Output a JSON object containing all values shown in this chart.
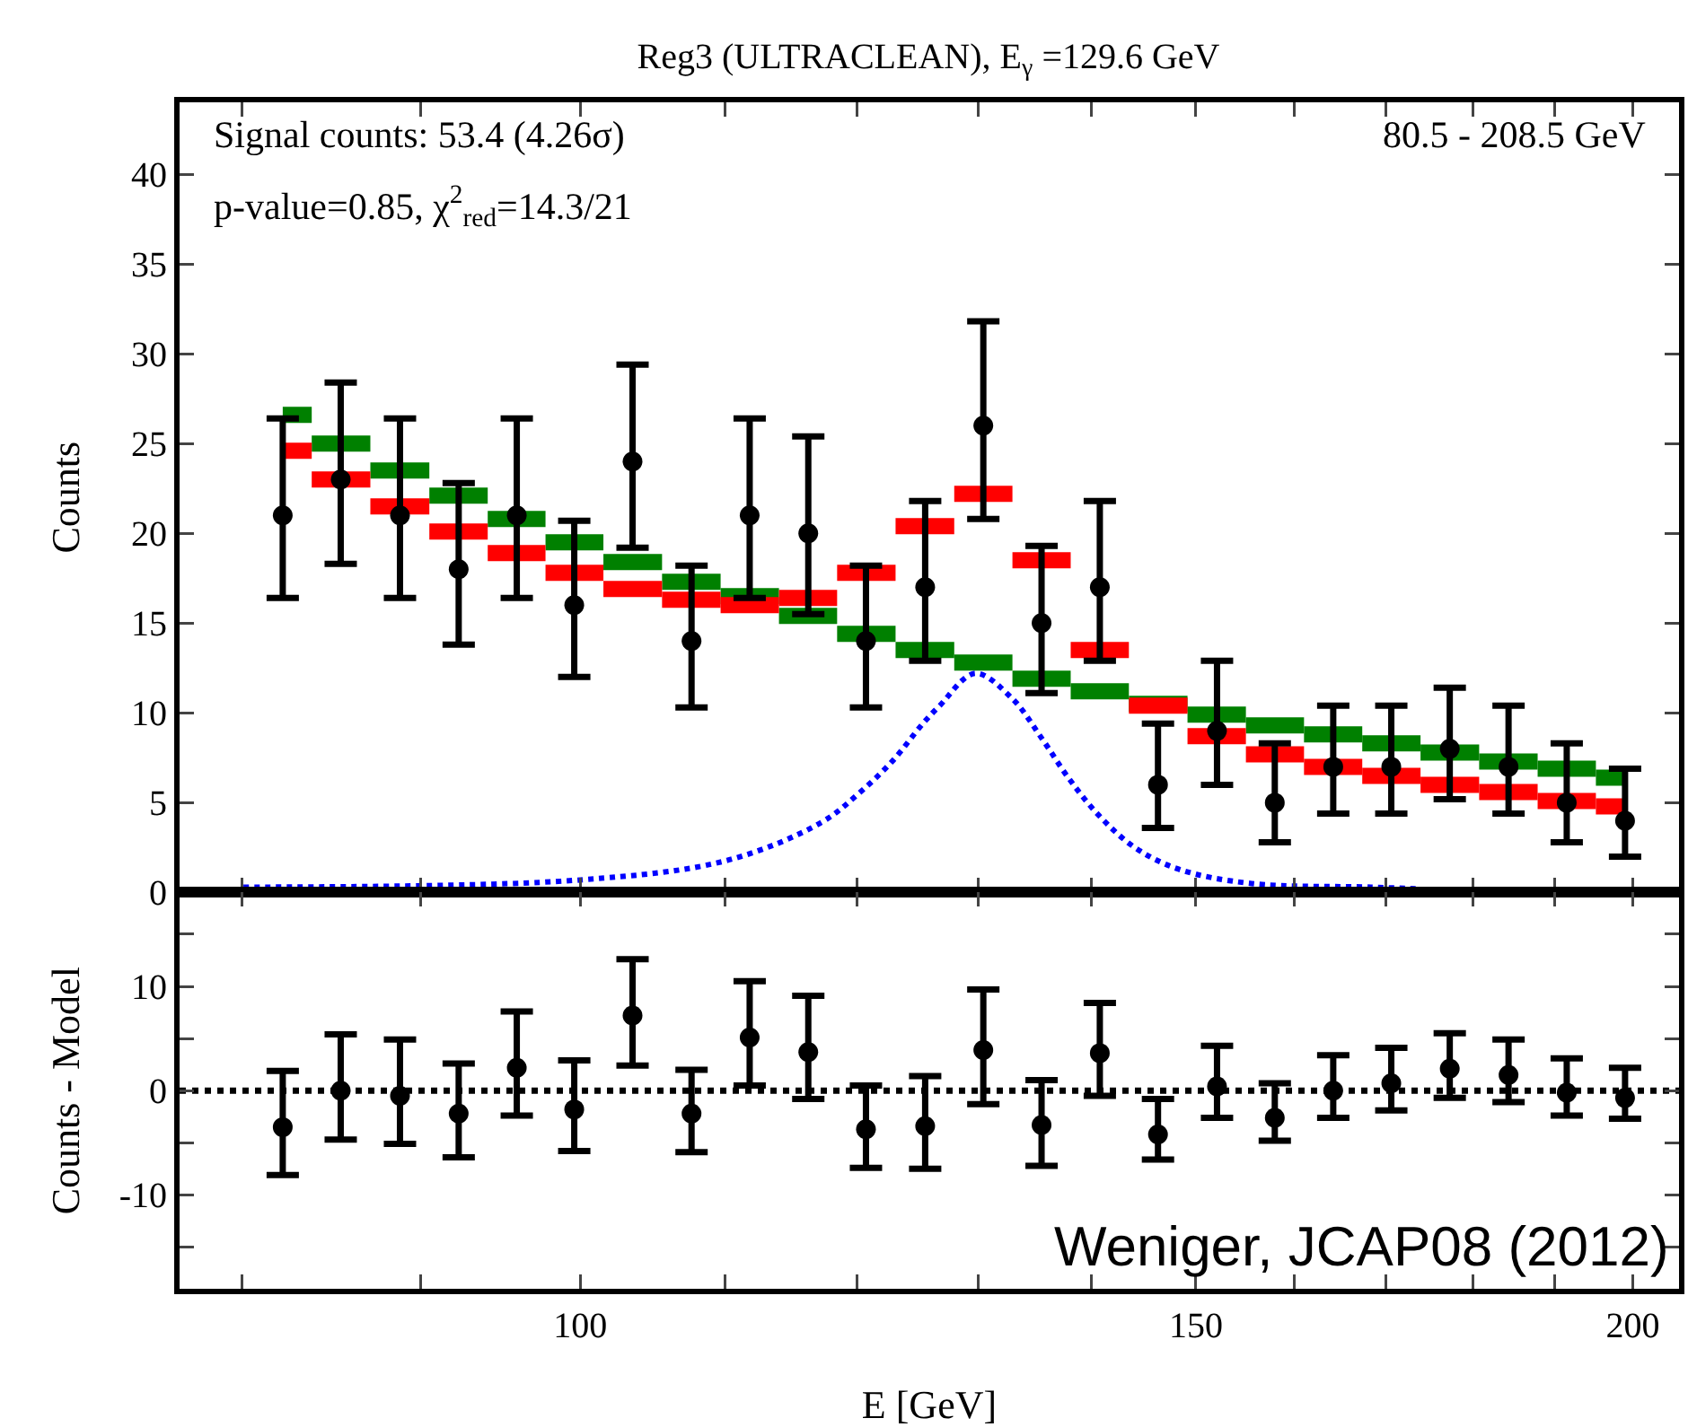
{
  "chart_data": [
    {
      "type": "scatter",
      "title": "Reg3 (ULTRACLEAN), E$_{γ}$ =129.6 GeV",
      "ylabel": "Counts",
      "tick_labels": "y",
      "annotations": [
        "Signal counts: 53.4 (4.26σ)",
        "p-value=0.85, χ$^{2}$$_{red}$=14.3/21",
        "80.5 - 208.5 GeV"
      ],
      "x": [
        82.2,
        85.4,
        88.8,
        92.3,
        95.9,
        99.6,
        103.5,
        107.6,
        111.8,
        116.2,
        120.7,
        125.5,
        130.4,
        135.5,
        140.8,
        146.3,
        152.1,
        158.0,
        164.2,
        170.6,
        177.3,
        184.3,
        191.5,
        199.0
      ],
      "xlim": [
        76.8,
        206.2
      ],
      "log": "x",
      "xticks": [
        {
          "value": 80,
          "label": null
        },
        {
          "value": 90,
          "label": null
        },
        100,
        {
          "value": 110,
          "label": null
        },
        {
          "value": 120,
          "label": null
        },
        {
          "value": 130,
          "label": null
        },
        {
          "value": 140,
          "label": null
        },
        150,
        {
          "value": 160,
          "label": null
        },
        {
          "value": 170,
          "label": null
        },
        {
          "value": 180,
          "label": null
        },
        {
          "value": 190,
          "label": null
        },
        200
      ],
      "ylim": [
        0,
        44
      ],
      "yticks": [
        0,
        5,
        10,
        15,
        20,
        25,
        30,
        35,
        40
      ],
      "series": [
        {
          "type": "step",
          "color": "#008000",
          "values": [
            26.6,
            25.0,
            23.5,
            22.1,
            20.8,
            19.5,
            18.4,
            17.3,
            16.5,
            15.4,
            14.4,
            13.5,
            12.8,
            11.9,
            11.2,
            10.5,
            9.9,
            9.3,
            8.8,
            8.3,
            7.8,
            7.3,
            6.9,
            6.4
          ]
        },
        {
          "type": "step",
          "color": "#ff0000",
          "values": [
            24.6,
            23.0,
            21.5,
            20.1,
            18.9,
            17.8,
            16.9,
            16.3,
            16.0,
            16.4,
            17.8,
            20.4,
            22.2,
            18.5,
            13.5,
            10.4,
            8.7,
            7.7,
            7.0,
            6.5,
            6.0,
            5.6,
            5.1,
            4.8
          ]
        },
        {
          "type": "line",
          "color": "#0000ff",
          "line_style": "dotted",
          "x": [
            80.1,
            100,
            110.2,
            117.2,
            120.1,
            122.8,
            125.3,
            126.7,
            129.7,
            132.9,
            135.5,
            137.9,
            140.7,
            144.1,
            148.3,
            155.6,
            168.3,
            173.8
          ],
          "values": [
            0.3,
            0.7,
            1.8,
            3.9,
            5.5,
            7.3,
            9.4,
            10.4,
            12.2,
            10.8,
            8.6,
            6.4,
            4.3,
            2.5,
            1.3,
            0.5,
            0.3,
            0.2
          ]
        },
        {
          "color": "#000000",
          "marker": "circle",
          "values": [
            21,
            23,
            21,
            18,
            21,
            16,
            24,
            14,
            21,
            20,
            14,
            17,
            26,
            15,
            17,
            6,
            9,
            5,
            7,
            7,
            8,
            7,
            5,
            4
          ],
          "errors": [
            [
              16.4,
              26.4
            ],
            [
              18.3,
              28.4
            ],
            [
              16.4,
              26.4
            ],
            [
              13.8,
              22.8
            ],
            [
              16.4,
              26.4
            ],
            [
              12.0,
              20.7
            ],
            [
              19.2,
              29.4
            ],
            [
              10.3,
              18.2
            ],
            [
              16.4,
              26.4
            ],
            [
              15.5,
              25.4
            ],
            [
              10.3,
              18.2
            ],
            [
              12.9,
              21.8
            ],
            [
              20.8,
              31.8
            ],
            [
              11.1,
              19.3
            ],
            [
              12.9,
              21.8
            ],
            [
              3.6,
              9.4
            ],
            [
              6.0,
              12.9
            ],
            [
              2.8,
              8.3
            ],
            [
              4.4,
              10.4
            ],
            [
              4.4,
              10.4
            ],
            [
              5.2,
              11.4
            ],
            [
              4.4,
              10.4
            ],
            [
              2.8,
              8.3
            ],
            [
              2.0,
              6.9
            ]
          ]
        }
      ]
    },
    {
      "type": "scatter",
      "xlabel": "E [GeV]",
      "ylabel": "Counts - Model",
      "annotations": [
        "Weniger, JCAP08 (2012)"
      ],
      "x": [
        82.2,
        85.4,
        88.8,
        92.3,
        95.9,
        99.6,
        103.5,
        107.6,
        111.8,
        116.2,
        120.7,
        125.5,
        130.4,
        135.5,
        140.8,
        146.3,
        152.1,
        158.0,
        164.2,
        170.6,
        177.3,
        184.3,
        191.5,
        199.0
      ],
      "xlim": [
        76.8,
        206.2
      ],
      "log": "x",
      "xticks": [
        {
          "value": 80,
          "label": null
        },
        {
          "value": 90,
          "label": null
        },
        100,
        {
          "value": 110,
          "label": null
        },
        {
          "value": 120,
          "label": null
        },
        {
          "value": 130,
          "label": null
        },
        {
          "value": 140,
          "label": null
        },
        150,
        {
          "value": 160,
          "label": null
        },
        {
          "value": 170,
          "label": null
        },
        {
          "value": 180,
          "label": null
        },
        {
          "value": 190,
          "label": null
        },
        200
      ],
      "ylim": [
        -19,
        19
      ],
      "yticks": [
        {
          "value": -15,
          "label": null
        },
        -10,
        {
          "value": -5,
          "label": null
        },
        0,
        {
          "value": 5,
          "label": null
        },
        10,
        {
          "value": 15,
          "label": null
        }
      ],
      "ref_lines": [
        {
          "axis": "y",
          "value": 0,
          "color": "#000000",
          "line_style": "dotted"
        }
      ],
      "series": [
        {
          "color": "#000000",
          "marker": "circle",
          "values": [
            -3.5,
            0,
            -0.5,
            -2.2,
            2.2,
            -1.8,
            7.2,
            -2.2,
            5.1,
            3.7,
            -3.7,
            -3.4,
            3.9,
            -3.3,
            3.6,
            -4.2,
            0.4,
            -2.6,
            0,
            0.7,
            2.1,
            1.5,
            -0.2,
            -0.7
          ],
          "errors": [
            [
              -8.1,
              1.9
            ],
            [
              -4.7,
              5.4
            ],
            [
              -5.1,
              4.9
            ],
            [
              -6.4,
              2.6
            ],
            [
              -2.4,
              7.6
            ],
            [
              -5.8,
              2.9
            ],
            [
              2.4,
              12.6
            ],
            [
              -5.9,
              2.0
            ],
            [
              0.5,
              10.5
            ],
            [
              -0.8,
              9.1
            ],
            [
              -7.4,
              0.5
            ],
            [
              -7.5,
              1.4
            ],
            [
              -1.3,
              9.7
            ],
            [
              -7.2,
              1.0
            ],
            [
              -0.5,
              8.4
            ],
            [
              -6.6,
              -0.8
            ],
            [
              -2.6,
              4.3
            ],
            [
              -4.8,
              0.7
            ],
            [
              -2.6,
              3.4
            ],
            [
              -1.9,
              4.1
            ],
            [
              -0.7,
              5.5
            ],
            [
              -1.1,
              4.9
            ],
            [
              -2.4,
              3.1
            ],
            [
              -2.7,
              2.2
            ]
          ]
        }
      ]
    }
  ]
}
